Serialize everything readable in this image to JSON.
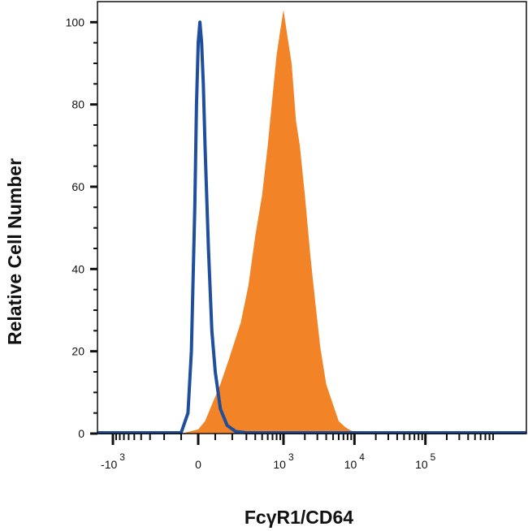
{
  "chart_data": {
    "type": "area",
    "title": "",
    "xlabel": "FcγR1/CD64",
    "ylabel": "Relative Cell Number",
    "x_scale": "biexponential",
    "xlim": [
      -2000,
      200000
    ],
    "ylim": [
      0,
      105
    ],
    "grid": false,
    "legend": "none",
    "x_ticks": [
      {
        "value": -1000,
        "base": "-10",
        "exp": "3"
      },
      {
        "value": 0,
        "base": "0",
        "exp": ""
      },
      {
        "value": 1000,
        "base": "10",
        "exp": "3"
      },
      {
        "value": 10000,
        "base": "10",
        "exp": "4"
      },
      {
        "value": 100000,
        "base": "10",
        "exp": "5"
      }
    ],
    "y_ticks": [
      0,
      20,
      40,
      60,
      80,
      100
    ],
    "series": [
      {
        "kind": "filled",
        "color": "#f28427",
        "x": [
          -100,
          0,
          40,
          80,
          130,
          180,
          250,
          320,
          400,
          500,
          600,
          700,
          800,
          900,
          1000,
          1150,
          1300,
          1500,
          1700,
          2000,
          2400,
          2800,
          3300,
          4000,
          5000,
          6000,
          7500,
          9000,
          12000,
          16000
        ],
        "y": [
          0,
          1,
          3,
          7,
          12,
          18,
          27,
          36,
          48,
          58,
          70,
          82,
          92,
          98,
          103,
          96,
          90,
          76,
          70,
          58,
          43,
          32,
          21,
          12,
          7,
          3,
          1.5,
          0.7,
          0.3,
          0
        ]
      },
      {
        "kind": "outline",
        "color": "#1f4f9c",
        "x": [
          -100,
          -60,
          -40,
          -20,
          -10,
          0,
          10,
          20,
          30,
          40,
          60,
          80,
          100,
          130,
          170,
          220,
          300
        ],
        "y": [
          0,
          5,
          20,
          55,
          80,
          95,
          100,
          95,
          85,
          70,
          45,
          25,
          15,
          6,
          2,
          0.5,
          0
        ]
      }
    ]
  }
}
